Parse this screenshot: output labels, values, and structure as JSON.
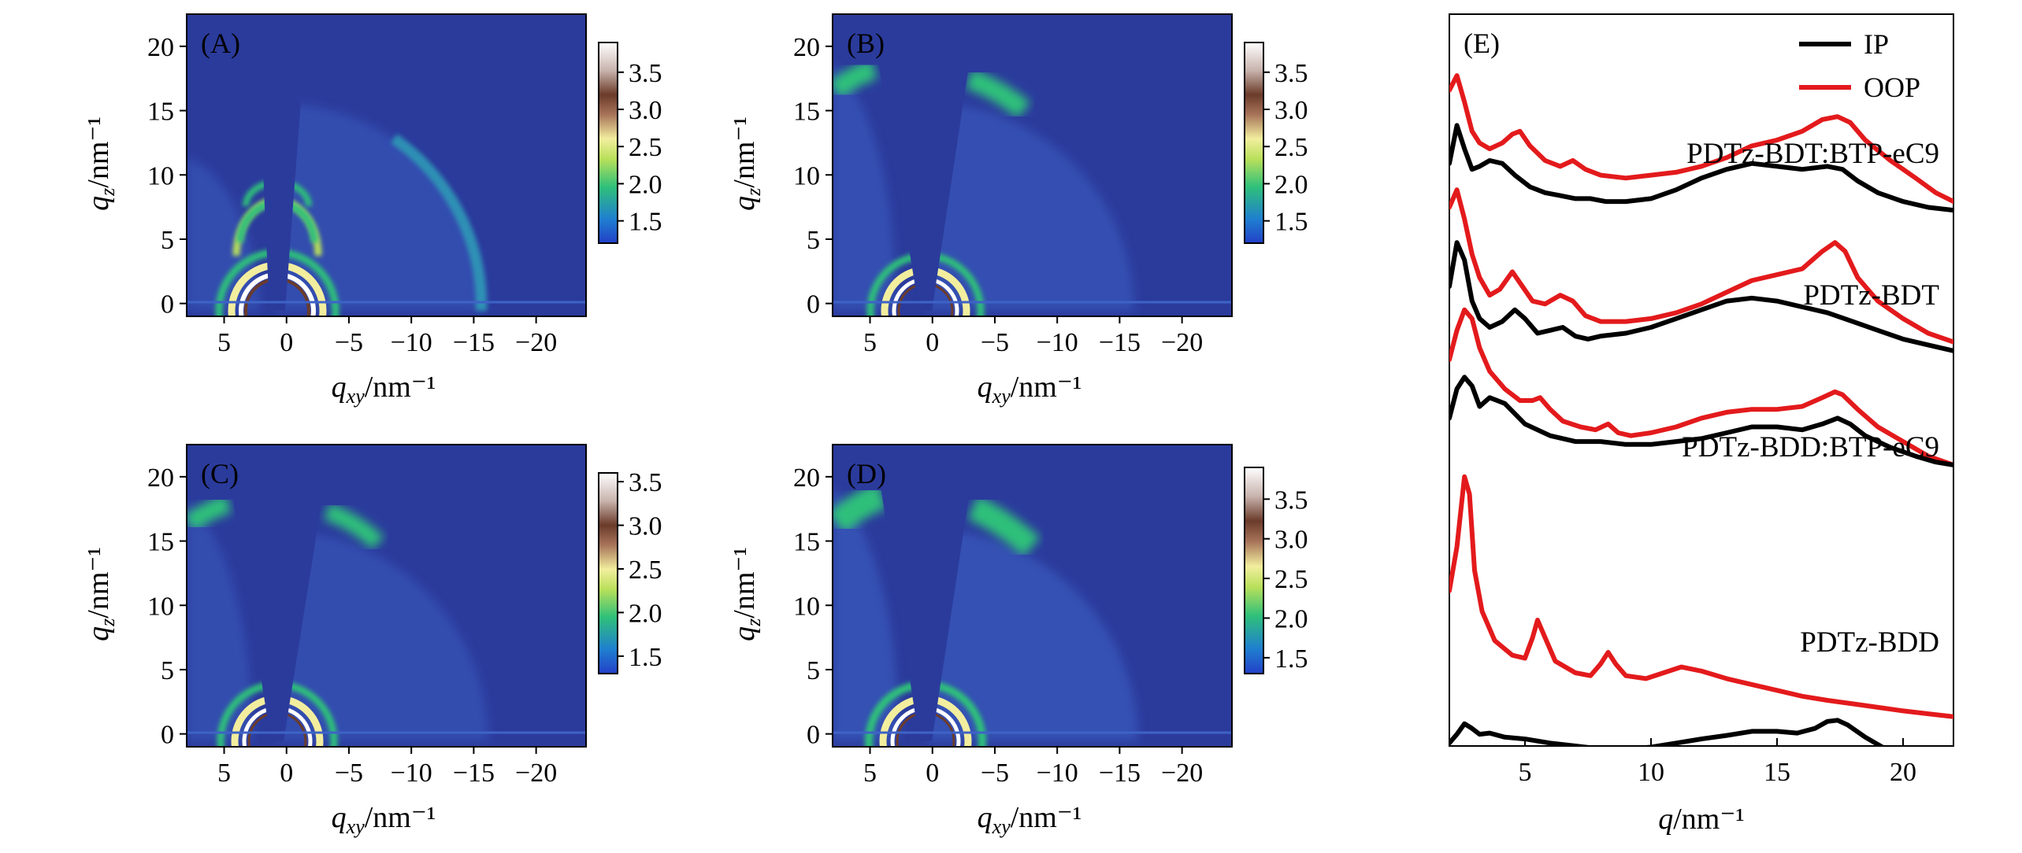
{
  "colors": {
    "map_background": "#2b3b9c",
    "ip": "#000000",
    "oop": "#e31a1c",
    "colormap": [
      "#2340c8",
      "#1f7fd0",
      "#2fc07a",
      "#b9e05a",
      "#f2ee9e",
      "#a8745a",
      "#6b3b2a",
      "#c8b3ad",
      "#ffffff"
    ]
  },
  "giwaxs_panels": [
    {
      "label": "(A)",
      "xlabel": "q_xy/nm⁻¹",
      "ylabel": "q_z/nm⁻¹",
      "xticks": [
        "5",
        "0",
        "−5",
        "−10",
        "−15",
        "−20"
      ],
      "yticks": [
        "0",
        "5",
        "10",
        "15",
        "20"
      ],
      "colorbar_ticks": [
        "1.5",
        "2.0",
        "2.5",
        "3.0",
        "3.5"
      ]
    },
    {
      "label": "(B)",
      "xlabel": "q_xy/nm⁻¹",
      "ylabel": "q_z/nm⁻¹",
      "xticks": [
        "5",
        "0",
        "−5",
        "−10",
        "−15",
        "−20"
      ],
      "yticks": [
        "0",
        "5",
        "10",
        "15",
        "20"
      ],
      "colorbar_ticks": [
        "1.5",
        "2.0",
        "2.5",
        "3.0",
        "3.5"
      ]
    },
    {
      "label": "(C)",
      "xlabel": "q_xy/nm⁻¹",
      "ylabel": "q_z/nm⁻¹",
      "xticks": [
        "5",
        "0",
        "−5",
        "−10",
        "−15",
        "−20"
      ],
      "yticks": [
        "0",
        "5",
        "10",
        "15",
        "20"
      ],
      "colorbar_ticks": [
        "1.5",
        "2.0",
        "2.5",
        "3.0",
        "3.5"
      ]
    },
    {
      "label": "(D)",
      "xlabel": "q_xy/nm⁻¹",
      "ylabel": "q_z/nm⁻¹",
      "xticks": [
        "5",
        "0",
        "−5",
        "−10",
        "−15",
        "−20"
      ],
      "yticks": [
        "0",
        "5",
        "10",
        "15",
        "20"
      ],
      "colorbar_ticks": [
        "1.5",
        "2.0",
        "2.5",
        "3.0",
        "3.5"
      ]
    }
  ],
  "chart_data": [
    {
      "type": "heatmap",
      "title": "(A)",
      "xlabel": "q_xy/nm⁻¹",
      "ylabel": "q_z/nm⁻¹",
      "xlim": [
        8,
        -24
      ],
      "ylim": [
        -1,
        22.5
      ],
      "colorbar_range": [
        1.2,
        3.9
      ],
      "colorbar_ticks": [
        1.5,
        2.0,
        2.5,
        3.0,
        3.5
      ]
    },
    {
      "type": "heatmap",
      "title": "(B)",
      "xlabel": "q_xy/nm⁻¹",
      "ylabel": "q_z/nm⁻¹",
      "xlim": [
        8,
        -24
      ],
      "ylim": [
        -1,
        22.5
      ],
      "colorbar_range": [
        1.2,
        3.9
      ],
      "colorbar_ticks": [
        1.5,
        2.0,
        2.5,
        3.0,
        3.5
      ]
    },
    {
      "type": "heatmap",
      "title": "(C)",
      "xlabel": "q_xy/nm⁻¹",
      "ylabel": "q_z/nm⁻¹",
      "xlim": [
        8,
        -24
      ],
      "ylim": [
        -1,
        22.5
      ],
      "colorbar_range": [
        1.3,
        3.6
      ],
      "colorbar_ticks": [
        1.5,
        2.0,
        2.5,
        3.0,
        3.5
      ]
    },
    {
      "type": "heatmap",
      "title": "(D)",
      "xlabel": "q_xy/nm⁻¹",
      "ylabel": "q_z/nm⁻¹",
      "xlim": [
        8,
        -24
      ],
      "ylim": [
        -1,
        22.5
      ],
      "colorbar_range": [
        1.3,
        3.9
      ],
      "colorbar_ticks": [
        1.5,
        2.0,
        2.5,
        3.0,
        3.5
      ]
    },
    {
      "type": "line",
      "title": "(E)",
      "xlabel": "q/nm⁻¹",
      "ylabel": "",
      "xlim": [
        2,
        22
      ],
      "ylim": [
        0,
        12.5
      ],
      "xticks": [
        5,
        10,
        15,
        20
      ],
      "legend": [
        "IP",
        "OOP"
      ],
      "legend_position": "top-right",
      "groups": [
        {
          "name": "PDTz-BDD",
          "series": [
            {
              "name": "OOP",
              "x": [
                2.0,
                2.3,
                2.6,
                2.8,
                3.0,
                3.3,
                3.8,
                4.5,
                5.0,
                5.3,
                5.5,
                5.8,
                6.2,
                7.0,
                7.6,
                8.0,
                8.3,
                8.6,
                9.0,
                9.8,
                10.5,
                11.2,
                12.0,
                13.0,
                14.0,
                15.0,
                16.0,
                17.0,
                18.0,
                19.0,
                20.0,
                21.0,
                22.0
              ],
              "y": [
                2.65,
                3.4,
                4.6,
                4.3,
                3.0,
                2.3,
                1.8,
                1.55,
                1.5,
                1.85,
                2.15,
                1.85,
                1.45,
                1.25,
                1.2,
                1.4,
                1.6,
                1.4,
                1.2,
                1.15,
                1.25,
                1.35,
                1.28,
                1.15,
                1.05,
                0.95,
                0.85,
                0.78,
                0.72,
                0.66,
                0.6,
                0.55,
                0.5
              ]
            },
            {
              "name": "IP",
              "x": [
                2.0,
                2.3,
                2.6,
                2.9,
                3.2,
                3.6,
                4.2,
                5.0,
                6.0,
                7.0,
                8.0,
                9.0,
                10.0,
                11.0,
                12.0,
                13.0,
                14.0,
                15.0,
                15.8,
                16.5,
                17.0,
                17.4,
                17.8,
                18.5,
                19.5,
                20.5,
                21.3,
                22.0
              ],
              "y": [
                0.05,
                0.2,
                0.38,
                0.3,
                0.2,
                0.22,
                0.15,
                0.12,
                0.05,
                0.0,
                -0.05,
                -0.05,
                -0.02,
                0.05,
                0.12,
                0.18,
                0.25,
                0.25,
                0.22,
                0.3,
                0.42,
                0.44,
                0.36,
                0.15,
                -0.1,
                -0.3,
                -0.42,
                -0.5
              ]
            }
          ]
        },
        {
          "name": "PDTz-BDD:BTP-eC9",
          "series": [
            {
              "name": "OOP",
              "x": [
                2.0,
                2.3,
                2.6,
                2.9,
                3.2,
                3.6,
                4.2,
                4.8,
                5.3,
                5.6,
                6.0,
                6.5,
                7.2,
                7.8,
                8.3,
                8.7,
                9.2,
                10.0,
                11.0,
                12.0,
                13.0,
                14.0,
                15.0,
                16.0,
                16.8,
                17.3,
                17.6,
                18.2,
                19.0,
                20.0,
                21.0,
                22.0
              ],
              "y": [
                6.6,
                7.1,
                7.45,
                7.3,
                6.8,
                6.4,
                6.1,
                5.9,
                5.9,
                5.95,
                5.75,
                5.55,
                5.45,
                5.4,
                5.5,
                5.35,
                5.3,
                5.35,
                5.45,
                5.6,
                5.7,
                5.75,
                5.75,
                5.8,
                5.95,
                6.05,
                6.0,
                5.75,
                5.45,
                5.2,
                4.95,
                4.8
              ]
            },
            {
              "name": "IP",
              "x": [
                2.0,
                2.3,
                2.6,
                2.9,
                3.2,
                3.6,
                4.2,
                5.0,
                6.0,
                7.0,
                8.0,
                9.0,
                10.0,
                11.0,
                12.0,
                13.0,
                14.0,
                15.0,
                16.0,
                16.8,
                17.4,
                17.9,
                18.5,
                19.5,
                20.5,
                21.3,
                22.0
              ],
              "y": [
                5.6,
                6.1,
                6.3,
                6.15,
                5.8,
                5.95,
                5.85,
                5.5,
                5.3,
                5.2,
                5.2,
                5.15,
                5.15,
                5.2,
                5.25,
                5.35,
                5.45,
                5.45,
                5.4,
                5.5,
                5.6,
                5.5,
                5.3,
                5.1,
                4.95,
                4.85,
                4.8
              ]
            }
          ]
        },
        {
          "name": "PDTz-BDT",
          "series": [
            {
              "name": "OOP",
              "x": [
                2.0,
                2.3,
                2.6,
                2.9,
                3.2,
                3.6,
                4.0,
                4.5,
                4.9,
                5.3,
                5.8,
                6.4,
                6.9,
                7.4,
                8.0,
                9.0,
                10.0,
                11.0,
                12.0,
                13.0,
                14.0,
                15.0,
                16.0,
                16.8,
                17.3,
                17.7,
                18.2,
                19.0,
                20.0,
                21.0,
                22.0
              ],
              "y": [
                9.2,
                9.5,
                9.0,
                8.4,
                8.0,
                7.7,
                7.8,
                8.1,
                7.85,
                7.6,
                7.55,
                7.7,
                7.6,
                7.35,
                7.25,
                7.25,
                7.3,
                7.4,
                7.55,
                7.75,
                7.95,
                8.05,
                8.15,
                8.45,
                8.6,
                8.45,
                8.0,
                7.6,
                7.3,
                7.05,
                6.9
              ]
            },
            {
              "name": "IP",
              "x": [
                2.0,
                2.3,
                2.6,
                2.9,
                3.2,
                3.6,
                4.1,
                4.6,
                5.0,
                5.5,
                6.0,
                6.5,
                7.0,
                7.5,
                8.0,
                9.0,
                10.0,
                11.0,
                12.0,
                13.0,
                14.0,
                15.0,
                16.0,
                17.0,
                18.0,
                19.0,
                20.0,
                21.0,
                22.0
              ],
              "y": [
                7.85,
                8.6,
                8.3,
                7.6,
                7.3,
                7.15,
                7.25,
                7.45,
                7.3,
                7.05,
                7.1,
                7.15,
                7.0,
                6.95,
                7.0,
                7.05,
                7.15,
                7.3,
                7.45,
                7.6,
                7.65,
                7.6,
                7.5,
                7.4,
                7.25,
                7.1,
                6.95,
                6.85,
                6.75
              ]
            }
          ]
        },
        {
          "name": "PDTz-BDT:BTP-eC9",
          "series": [
            {
              "name": "OOP",
              "x": [
                2.0,
                2.3,
                2.6,
                2.9,
                3.2,
                3.6,
                4.1,
                4.5,
                4.8,
                5.2,
                5.8,
                6.4,
                6.9,
                7.4,
                8.0,
                9.0,
                10.0,
                11.0,
                12.0,
                13.0,
                14.0,
                15.0,
                16.0,
                16.8,
                17.4,
                17.9,
                18.5,
                19.5,
                20.5,
                21.3,
                22.0
              ],
              "y": [
                11.2,
                11.45,
                11.0,
                10.5,
                10.3,
                10.2,
                10.3,
                10.45,
                10.5,
                10.25,
                10.0,
                9.9,
                10.0,
                9.85,
                9.75,
                9.7,
                9.75,
                9.8,
                9.9,
                10.05,
                10.25,
                10.35,
                10.5,
                10.7,
                10.75,
                10.65,
                10.35,
                10.0,
                9.7,
                9.45,
                9.3
              ]
            },
            {
              "name": "IP",
              "x": [
                2.0,
                2.3,
                2.6,
                2.9,
                3.2,
                3.6,
                4.1,
                4.6,
                5.2,
                5.8,
                6.4,
                7.0,
                7.6,
                8.2,
                9.0,
                10.0,
                11.0,
                12.0,
                13.0,
                14.0,
                15.0,
                16.0,
                17.0,
                17.6,
                18.2,
                19.0,
                20.0,
                21.0,
                22.0
              ],
              "y": [
                9.95,
                10.6,
                10.2,
                9.85,
                9.9,
                10.0,
                9.95,
                9.75,
                9.55,
                9.45,
                9.4,
                9.35,
                9.35,
                9.3,
                9.3,
                9.35,
                9.5,
                9.7,
                9.85,
                9.95,
                9.9,
                9.85,
                9.9,
                9.85,
                9.65,
                9.45,
                9.3,
                9.2,
                9.15
              ]
            }
          ]
        }
      ]
    }
  ]
}
